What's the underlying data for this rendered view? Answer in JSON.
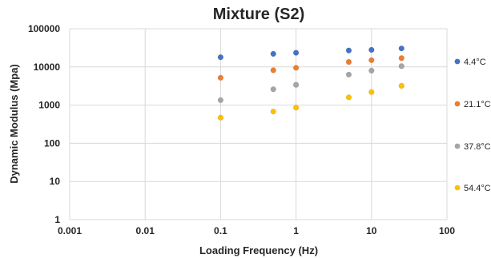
{
  "chart_data": {
    "type": "scatter",
    "title": "Mixture (S2)",
    "xlabel": "Loading Frequency (Hz)",
    "ylabel": "Dynamic Modulus (Mpa)",
    "xscale": "log",
    "yscale": "log",
    "xlim": [
      0.001,
      100
    ],
    "ylim": [
      1,
      100000
    ],
    "x_ticks": [
      "0.001",
      "0.01",
      "0.1",
      "1",
      "10",
      "100"
    ],
    "y_ticks": [
      "1",
      "10",
      "100",
      "1000",
      "10000",
      "100000"
    ],
    "grid": true,
    "legend_position": "right",
    "series": [
      {
        "name": "4.4°C",
        "color": "#4472c4",
        "points": [
          [
            0.1,
            18000
          ],
          [
            0.5,
            22000
          ],
          [
            1,
            23500
          ],
          [
            5,
            27000
          ],
          [
            10,
            28000
          ],
          [
            25,
            30500
          ]
        ]
      },
      {
        "name": "21.1°C",
        "color": "#ed7d31",
        "points": [
          [
            0.1,
            5200
          ],
          [
            0.5,
            8200
          ],
          [
            1,
            9500
          ],
          [
            5,
            13500
          ],
          [
            10,
            15000
          ],
          [
            25,
            17000
          ]
        ]
      },
      {
        "name": "37.8°C",
        "color": "#a5a5a5",
        "points": [
          [
            0.1,
            1350
          ],
          [
            0.5,
            2600
          ],
          [
            1,
            3400
          ],
          [
            5,
            6300
          ],
          [
            10,
            8000
          ],
          [
            25,
            10500
          ]
        ]
      },
      {
        "name": "54.4°C",
        "color": "#ffc000",
        "points": [
          [
            0.1,
            470
          ],
          [
            0.5,
            680
          ],
          [
            1,
            860
          ],
          [
            5,
            1600
          ],
          [
            10,
            2200
          ],
          [
            25,
            3200
          ]
        ]
      }
    ]
  }
}
